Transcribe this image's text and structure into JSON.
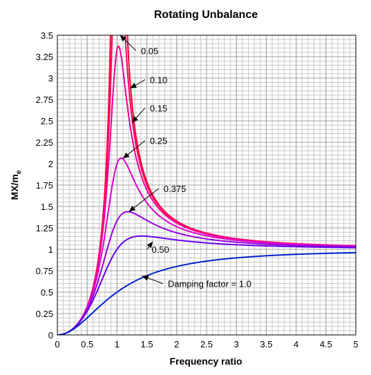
{
  "chart_data": {
    "type": "line",
    "title": "Rotating Unbalance",
    "xlabel": "Frequency ratio",
    "ylabel_main": "MX/m",
    "ylabel_sub": "e",
    "xlim": [
      0,
      5
    ],
    "ylim": [
      0,
      3.5
    ],
    "grid": true,
    "x_ticks": [
      0,
      0.5,
      1,
      1.5,
      2,
      2.5,
      3,
      3.5,
      4,
      4.5,
      5
    ],
    "x_tick_labels": [
      "0",
      "0.5",
      "1",
      "1.5",
      "2",
      "2.5",
      "3",
      "3.5",
      "4",
      "4.5",
      "5"
    ],
    "y_ticks": [
      0,
      0.25,
      0.5,
      0.75,
      1,
      1.25,
      1.5,
      1.75,
      2,
      2.25,
      2.5,
      2.75,
      3,
      3.25,
      3.5
    ],
    "y_tick_labels": [
      "0",
      "0.25",
      "0.5",
      "0.75",
      "1",
      "1.25",
      "1.5",
      "1.75",
      "2",
      "2.25",
      "2.5",
      "2.75",
      "3",
      "3.25",
      "3.5"
    ],
    "series": [
      {
        "zeta": 0.05,
        "color": "#ff0033"
      },
      {
        "zeta": 0.1,
        "color": "#ff0066"
      },
      {
        "zeta": 0.15,
        "color": "#ee0099"
      },
      {
        "zeta": 0.25,
        "color": "#dd00cc"
      },
      {
        "zeta": 0.375,
        "color": "#9900dd"
      },
      {
        "zeta": 0.5,
        "color": "#6600ee"
      },
      {
        "zeta": 1.0,
        "color": "#0022cc"
      }
    ],
    "annotations": [
      {
        "text": "0.05",
        "point": [
          1.05,
          3.5
        ],
        "label_at": [
          1.4,
          3.32
        ]
      },
      {
        "text": "0.10",
        "point": [
          1.22,
          2.88
        ],
        "label_at": [
          1.55,
          2.98
        ]
      },
      {
        "text": "0.15",
        "point": [
          1.25,
          2.48
        ],
        "label_at": [
          1.55,
          2.65
        ]
      },
      {
        "text": "0.25",
        "point": [
          1.1,
          2.06
        ],
        "label_at": [
          1.55,
          2.27
        ]
      },
      {
        "text": "0.375",
        "point": [
          1.2,
          1.44
        ],
        "label_at": [
          1.78,
          1.71
        ]
      },
      {
        "text": "0.50",
        "point": [
          1.6,
          1.09
        ],
        "label_at": [
          1.58,
          1.0
        ]
      },
      {
        "text": "Damping factor = 1.0",
        "point": [
          1.42,
          0.69
        ],
        "label_at": [
          1.85,
          0.6
        ]
      }
    ]
  }
}
